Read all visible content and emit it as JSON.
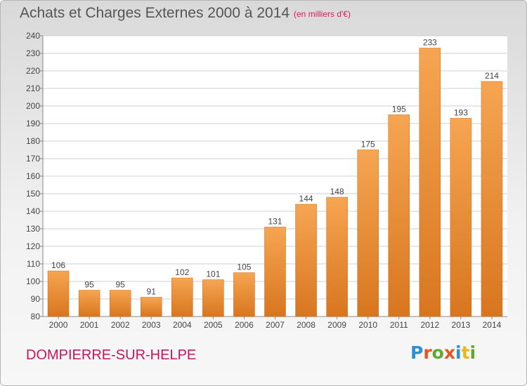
{
  "header": {
    "title": "Achats et Charges Externes 2000 à 2014",
    "subtitle": "(en milliers d'€)"
  },
  "footer": {
    "commune": "DOMPIERRE-SUR-HELPE",
    "logo_letters": [
      "P",
      "r",
      "o",
      "x",
      "i",
      "t",
      "i"
    ],
    "logo_colors": [
      "#2b8fd6",
      "#e8541d",
      "#5aab2e",
      "#e8541d",
      "#2b8fd6",
      "#e8b61d",
      "#5aab2e"
    ]
  },
  "colors": {
    "bar_light": "#f6a552",
    "bar_dark": "#d8761f",
    "grid": "#cfcfcf"
  },
  "chart_data": {
    "type": "bar",
    "title": "Achats et Charges Externes 2000 à 2014",
    "subtitle": "(en milliers d'€)",
    "categories": [
      "2000",
      "2001",
      "2002",
      "2003",
      "2004",
      "2005",
      "2006",
      "2007",
      "2008",
      "2009",
      "2010",
      "2011",
      "2012",
      "2013",
      "2014"
    ],
    "values": [
      106,
      95,
      95,
      91,
      102,
      101,
      105,
      131,
      144,
      148,
      175,
      195,
      233,
      193,
      214
    ],
    "ylim": [
      80,
      240
    ],
    "yticks": [
      80,
      90,
      100,
      110,
      120,
      130,
      140,
      150,
      160,
      170,
      180,
      190,
      200,
      210,
      220,
      230,
      240
    ],
    "grid": true,
    "legend": "none"
  }
}
